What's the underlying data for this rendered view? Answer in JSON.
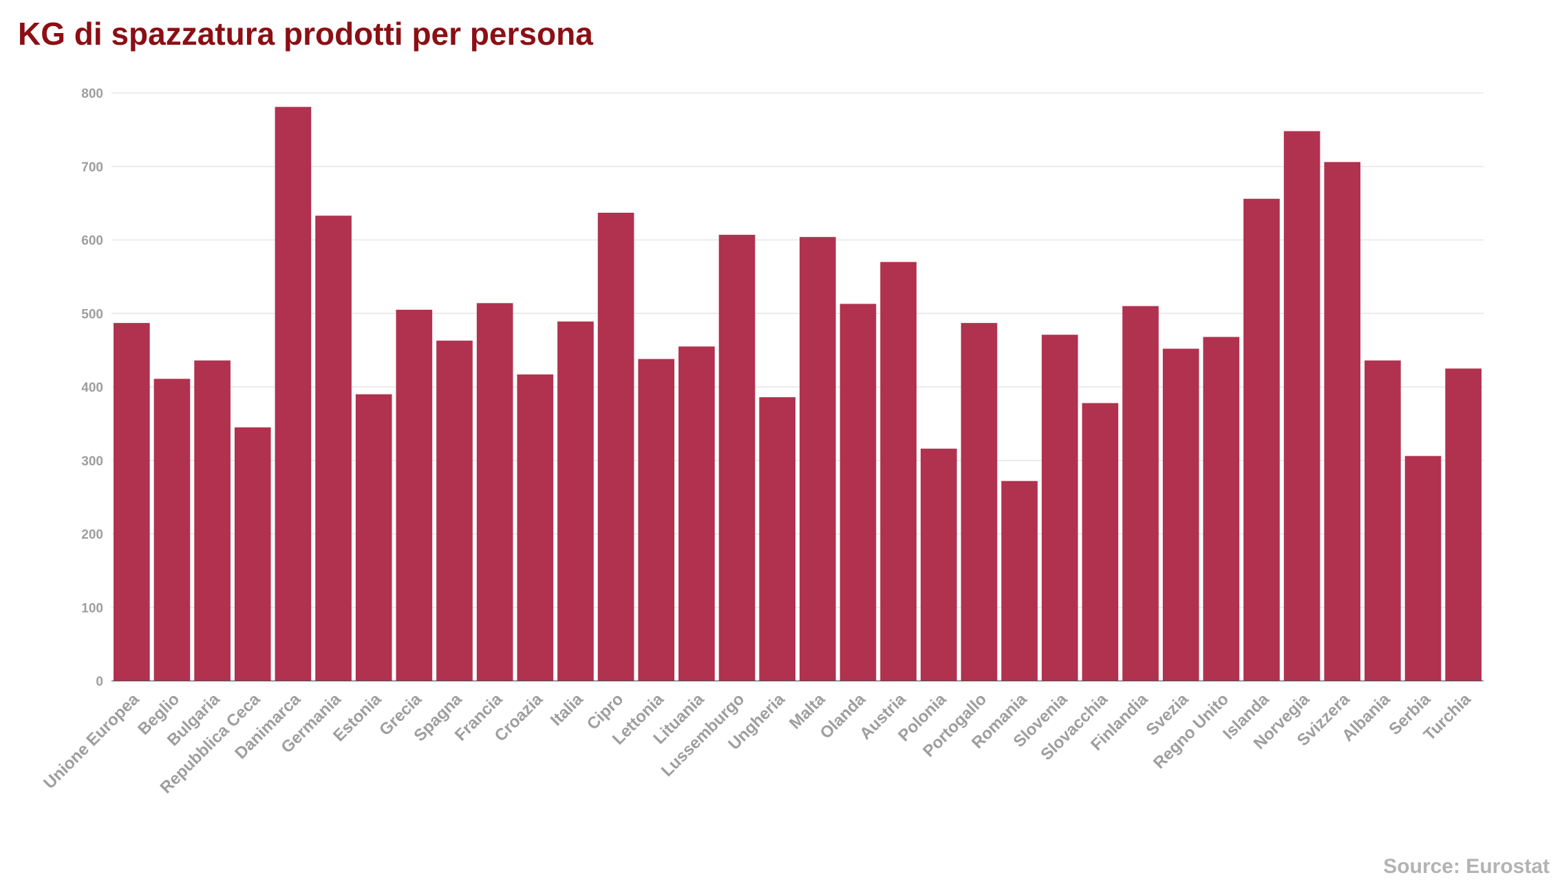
{
  "chart_data": {
    "type": "bar",
    "title": "KG di spazzatura prodotti per persona",
    "xlabel": "",
    "ylabel": "",
    "ylim": [
      0,
      800
    ],
    "yticks": [
      0,
      100,
      200,
      300,
      400,
      500,
      600,
      700,
      800
    ],
    "grid": true,
    "categories": [
      "Unione Europea",
      "Beglio",
      "Bulgaria",
      "Repubblica Ceca",
      "Danimarca",
      "Germania",
      "Estonia",
      "Grecia",
      "Spagna",
      "Francia",
      "Croazia",
      "Italia",
      "Cipro",
      "Lettonia",
      "Lituania",
      "Lussemburgo",
      "Ungheria",
      "Malta",
      "Olanda",
      "Austria",
      "Polonia",
      "Portogallo",
      "Romania",
      "Slovenia",
      "Slovacchia",
      "Finlandia",
      "Svezia",
      "Regno Unito",
      "Islanda",
      "Norvegia",
      "Svizzera",
      "Albania",
      "Serbia",
      "Turchia"
    ],
    "values": [
      487,
      411,
      436,
      345,
      781,
      633,
      390,
      505,
      463,
      514,
      417,
      489,
      637,
      438,
      455,
      607,
      386,
      604,
      513,
      570,
      316,
      487,
      272,
      471,
      378,
      510,
      452,
      468,
      656,
      748,
      706,
      436,
      306,
      425
    ],
    "bar_color": "#b0324e",
    "source": "Source: Eurostat"
  }
}
